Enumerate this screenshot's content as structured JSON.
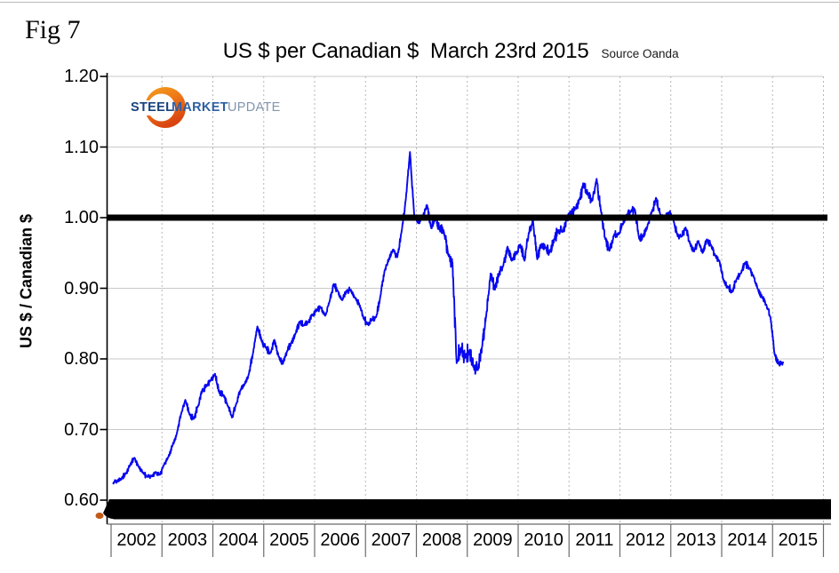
{
  "figure_label": "Fig 7",
  "title": "US $ per Canadian $  March 23rd 2015",
  "source": "Source Oanda",
  "logo": {
    "steel": "STEEL",
    "market": "MARKET",
    "update": "UPDATE"
  },
  "y_axis": {
    "label": "US $ / Canadian $",
    "ticks": [
      "1.20",
      "1.10",
      "1.00",
      "0.90",
      "0.80",
      "0.70",
      "0.60"
    ],
    "min": 0.6,
    "max": 1.2
  },
  "x_axis": {
    "years": [
      "2002",
      "2003",
      "2004",
      "2005",
      "2006",
      "2007",
      "2008",
      "2009",
      "2010",
      "2011",
      "2012",
      "2013",
      "2014",
      "2015"
    ]
  },
  "colors": {
    "line": "#0707f0",
    "reference_line": "#000000",
    "bottom_bar": "#000000",
    "grid_solid": "#c9c9c9",
    "grid_dashed": "#b5b5b5",
    "axis": "#000000",
    "label_band_border": "#6b6b6b",
    "logo_navy": "#17437e",
    "logo_blue": "#2e5fa3",
    "logo_gray_blue": "#8195ae",
    "logo_orange_light": "#f5a11d",
    "logo_orange_dark": "#d94410",
    "bar_tail_orange": "#c05a1a"
  },
  "chart_data": {
    "type": "line",
    "title": "US $ per Canadian $  March 23rd 2015",
    "ylabel": "US $ / Canadian $",
    "ylim": [
      0.6,
      1.2
    ],
    "xlim_years": [
      2002,
      2016
    ],
    "grid": true,
    "reference_line_y": 1.0,
    "series": [
      {
        "name": "US $ per Canadian $ (monthly, Jan 2002 - Mar 2015)",
        "start_year": 2002,
        "frequency": "monthly",
        "values_by_year": {
          "2002": [
            0.624,
            0.627,
            0.631,
            0.638,
            0.65,
            0.66,
            0.647,
            0.639,
            0.633,
            0.634,
            0.64,
            0.636
          ],
          "2003": [
            0.65,
            0.661,
            0.678,
            0.694,
            0.722,
            0.742,
            0.721,
            0.715,
            0.733,
            0.756,
            0.762,
            0.769
          ],
          "2004": [
            0.779,
            0.752,
            0.749,
            0.734,
            0.717,
            0.736,
            0.756,
            0.764,
            0.779,
            0.809,
            0.846,
            0.825
          ],
          "2005": [
            0.816,
            0.808,
            0.827,
            0.804,
            0.793,
            0.811,
            0.823,
            0.836,
            0.853,
            0.848,
            0.852,
            0.862
          ],
          "2006": [
            0.869,
            0.873,
            0.861,
            0.881,
            0.906,
            0.896,
            0.883,
            0.896,
            0.898,
            0.887,
            0.878,
            0.858
          ],
          "2007": [
            0.849,
            0.856,
            0.859,
            0.888,
            0.925,
            0.941,
            0.955,
            0.944,
            0.98,
            1.026,
            1.093,
            1.002
          ],
          "2008": [
            0.992,
            1.003,
            1.018,
            0.985,
            1.002,
            0.983,
            0.98,
            0.947,
            0.936,
            0.794,
            0.816,
            0.802
          ],
          "2009": [
            0.812,
            0.789,
            0.784,
            0.817,
            0.863,
            0.921,
            0.898,
            0.921,
            0.932,
            0.959,
            0.939,
            0.95
          ],
          "2010": [
            0.962,
            0.939,
            0.978,
            0.996,
            0.941,
            0.962,
            0.957,
            0.952,
            0.97,
            0.982,
            0.98,
            0.999
          ],
          "2011": [
            1.007,
            1.013,
            1.027,
            1.048,
            1.033,
            1.024,
            1.055,
            1.011,
            0.97,
            0.953,
            0.974,
            0.977
          ],
          "2012": [
            0.99,
            1.003,
            1.008,
            1.012,
            0.971,
            0.973,
            0.988,
            1.008,
            1.028,
            1.005,
            0.999,
            1.007
          ],
          "2013": [
            1.0,
            0.976,
            0.973,
            0.986,
            0.964,
            0.952,
            0.967,
            0.95,
            0.969,
            0.961,
            0.946,
            0.938
          ],
          "2014": [
            0.91,
            0.902,
            0.895,
            0.913,
            0.921,
            0.936,
            0.929,
            0.917,
            0.899,
            0.888,
            0.877,
            0.859
          ],
          "2015": [
            0.806,
            0.792,
            0.795
          ]
        }
      }
    ]
  }
}
